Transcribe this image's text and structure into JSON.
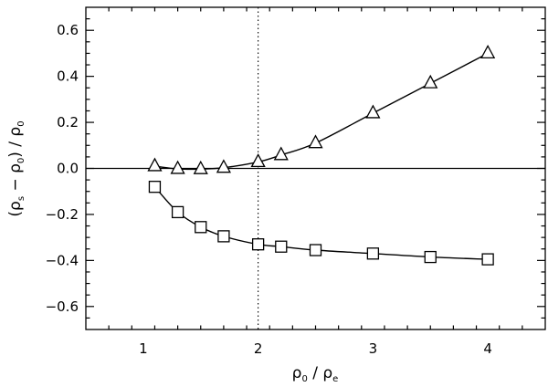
{
  "chart_data": {
    "type": "line",
    "xlim": [
      0.5,
      4.5
    ],
    "ylim": [
      -0.7,
      0.7
    ],
    "x_ticks": [
      1,
      2,
      3,
      4
    ],
    "x_tick_labels": [
      "1",
      "2",
      "3",
      "4"
    ],
    "y_ticks": [
      -0.6,
      -0.4,
      -0.2,
      0.0,
      0.2,
      0.4,
      0.6
    ],
    "y_tick_labels": [
      "−0.6",
      "−0.4",
      "−0.2",
      "0.0",
      "0.2",
      "0.4",
      "0.6"
    ],
    "xlabel": {
      "rho1": "ρ",
      "sub1": "0",
      "slash": " / ",
      "rho2": "ρ",
      "sub2": "e"
    },
    "ylabel": {
      "open": "(",
      "rho1": "ρ",
      "sub1": "s",
      "minus": " − ",
      "rho2": "ρ",
      "sub2": "0",
      "close": ") / ",
      "rho3": "ρ",
      "sub3": "0"
    },
    "reference_lines": {
      "horizontal_y": 0.0,
      "vertical_dotted_x": 2.0
    },
    "series": [
      {
        "marker": "triangle",
        "x": [
          1.1,
          1.3,
          1.5,
          1.7,
          2.0,
          2.2,
          2.5,
          3.0,
          3.5,
          4.0
        ],
        "y": [
          0.01,
          -0.002,
          -0.003,
          0.003,
          0.028,
          0.058,
          0.11,
          0.24,
          0.37,
          0.5
        ]
      },
      {
        "marker": "square",
        "x": [
          1.1,
          1.3,
          1.5,
          1.7,
          2.0,
          2.2,
          2.5,
          3.0,
          3.5,
          4.0
        ],
        "y": [
          -0.08,
          -0.19,
          -0.255,
          -0.295,
          -0.33,
          -0.34,
          -0.355,
          -0.37,
          -0.385,
          -0.395
        ]
      }
    ]
  }
}
